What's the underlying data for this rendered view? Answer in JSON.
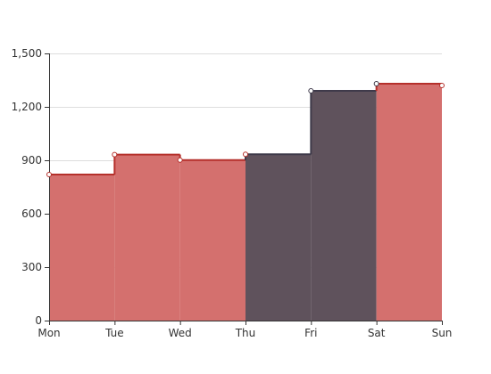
{
  "chart_data": {
    "type": "area",
    "step": "end",
    "categories": [
      "Mon",
      "Tue",
      "Wed",
      "Thu",
      "Fri",
      "Sat",
      "Sun"
    ],
    "values": [
      820,
      932,
      901,
      934,
      1290,
      1330,
      1320
    ],
    "ylim": [
      0,
      1500
    ],
    "yticks": [
      0,
      300,
      600,
      900,
      1200,
      1500
    ],
    "ytick_labels": [
      "0",
      "300",
      "600",
      "900",
      "1,200",
      "1,500"
    ],
    "grid": true,
    "colors": {
      "fill_default": "#d4706e",
      "line_default": "#b5302b",
      "fill_highlight": "#5f525c",
      "line_highlight": "#3f3a4a",
      "grid": "#dddddd",
      "axis": "#333333"
    },
    "highlight_range": [
      "Thu",
      "Sat"
    ]
  }
}
